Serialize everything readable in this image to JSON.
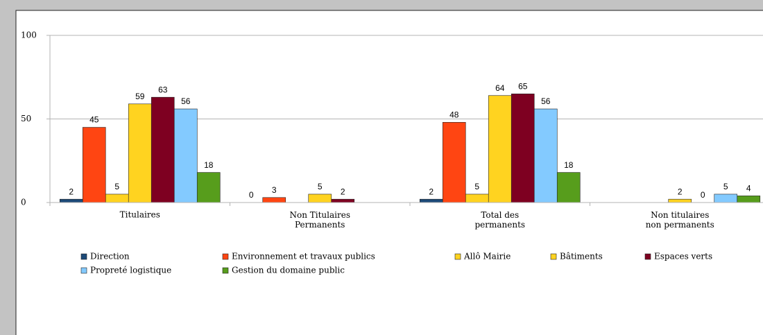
{
  "chart_data": {
    "type": "bar",
    "categories": [
      "Titulaires",
      "Non Titulaires\nPermanents",
      "Total des\npermanents",
      "Non titulaires\nnon permanents"
    ],
    "series": [
      {
        "name": "Direction",
        "color": "#1c4a78",
        "values": [
          2,
          0,
          2,
          null
        ]
      },
      {
        "name": "Environnement et travaux publics",
        "color": "#ff4512",
        "values": [
          45,
          3,
          48,
          null
        ]
      },
      {
        "name": "Allô Mairie",
        "color": "#ffd320",
        "values": [
          5,
          null,
          5,
          null
        ]
      },
      {
        "name": "Bâtiments",
        "color": "#ffd320",
        "values": [
          59,
          5,
          64,
          2
        ]
      },
      {
        "name": "Espaces verts",
        "color": "#7e0021",
        "values": [
          63,
          2,
          65,
          0
        ]
      },
      {
        "name": "Propreté logistique",
        "color": "#83caff",
        "values": [
          56,
          null,
          56,
          5
        ]
      },
      {
        "name": "Gestion du domaine public",
        "color": "#579d1c",
        "values": [
          18,
          null,
          18,
          4
        ]
      }
    ],
    "ylim": [
      0,
      100
    ],
    "yticks": [
      0,
      50,
      100
    ],
    "grid": true
  }
}
